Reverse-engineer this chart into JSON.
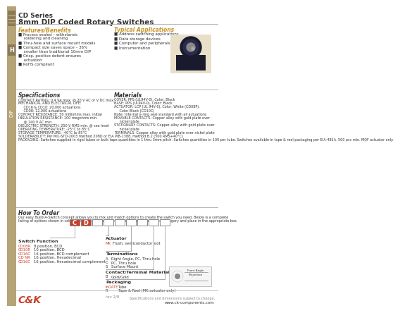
{
  "title_line1": "CD Series",
  "title_line2": "8mm DIP Coded Rotary Switches",
  "bg_color": "#ffffff",
  "sidebar_color": "#b5a478",
  "features_title": "Features/Benefits",
  "features_color": "#c8952a",
  "features": [
    "Process sealed – withstands soldering and cleaning",
    "Thru-hole and surface mount models",
    "Compact size saves space – 36% smaller than traditional 10mm DIP",
    "Crisp, positive detent ensures actuation",
    "RoHS compliant"
  ],
  "apps_title": "Typical Applications",
  "apps_color": "#c8952a",
  "apps": [
    "Address switching applications",
    "Data storage devices",
    "Computer and peripherals",
    "Instrumentation"
  ],
  "specs_title": "Specifications",
  "specs": [
    "CONTACT RATING: 0.4 VA max, @ 20 V AC or V DC max.",
    "MECHANICAL AND ELECTRICAL LIFE:",
    "     CD16 & CD10: 20,000 actuations",
    "     CD08: 12,000 actuations",
    "CONTACT RESISTANCE: 50 milliohms max. initial",
    "INSULATION RESISTANCE: 100 megohms min.",
    "     @ 240 V AC min.",
    "DIELECTRIC STRENGTH: 250 V RMS min. @ sea level",
    "OPERATING TEMPERATURE: -25°C to 85°C",
    "STORAGE TEMPERATURE: -40°C to 85°C",
    "SOLDERABILITY: Per MIL-STD-2003 method 208D or EIA PIB-1388, method B.2 (500 RMS+40°C)",
    "PACKAGING: Switches supplied in rigid tubes or bulk tape quantities in 1 thru 3mm pitch. Switches quantities in 100 per tube. Switches available in tape & reel packaging per EIA-481A. 500 pcs min. MQF actuator only."
  ],
  "materials_title": "Materials",
  "materials": [
    "COVER: PPS (UL94V-0), Color: Black",
    "BASE: PPS (UL94V-0), Color: Black",
    "ACTUATOR: LCP (UL 94V-0), Color: White (CD08P),",
    "     Color Black (CD10C)",
    "Note: Internal o-ring seal standard with all actuations",
    "MOVABLE CONTACTS: Copper alloy with gold plate over",
    "     nickel plate",
    "STATIONARY CONTACTS: Copper alloy with gold plate over",
    "     nickel plate",
    "TERMINALS: Copper alloy with gold plate over nickel plate"
  ],
  "howtoorder_title": "How To Order",
  "howtoorder_text": "Our easy Build-A-Switch concept allows you to mix and match options to create the switch you need. Below is a complete listing of options shown in catalog. To order, simply select desired option from each category and place in the appropriate box.",
  "switch_positions_title": "Switch Function",
  "switch_positions": [
    [
      "CD08R",
      "8 position, BCD"
    ],
    [
      "CD10R",
      "10 position, BCD"
    ],
    [
      "CD16C",
      "16 position, BCD complement"
    ],
    [
      "CD NR",
      "16 position, Hexadecimal"
    ],
    [
      "CD16C",
      "16 position, Hexadecimal complement"
    ]
  ],
  "actuator_title": "Actuator",
  "actuator": [
    [
      "MK",
      "Flush, semiconductor slot"
    ]
  ],
  "terminations_title": "Terminations",
  "terminations": [
    [
      "A",
      "Right Angle, PC, Thru hole"
    ],
    [
      "C",
      "PC, Thru hole"
    ],
    [
      "S",
      "Surface Mount"
    ]
  ],
  "contact_title": "Contact/Terminal Material",
  "contact": [
    [
      "B",
      "Gold/Gold"
    ]
  ],
  "packaging_title": "Packaging",
  "packaging": [
    [
      "InDATE",
      "Tube"
    ],
    [
      "R",
      "Tape & Reel (MK actuator only)"
    ]
  ],
  "footer_company": "C&K",
  "footer_website": "www.ck-components.com",
  "red_color": "#c8402a",
  "dark_color": "#333333",
  "gray_color": "#888888",
  "line_color": "#aaaaaa"
}
